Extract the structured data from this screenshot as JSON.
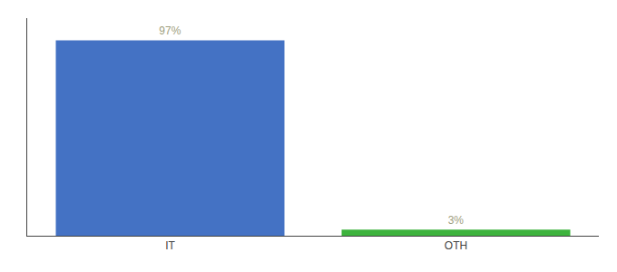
{
  "chart_data": {
    "type": "bar",
    "categories": [
      "IT",
      "OTH"
    ],
    "values": [
      97,
      3
    ],
    "value_labels": [
      "97%",
      "3%"
    ],
    "data_labels": true,
    "colors": [
      "#4472c4",
      "#3db33d"
    ],
    "ylim": [
      0,
      108
    ],
    "yticks": [],
    "tick_labels": "x",
    "grid": false
  }
}
